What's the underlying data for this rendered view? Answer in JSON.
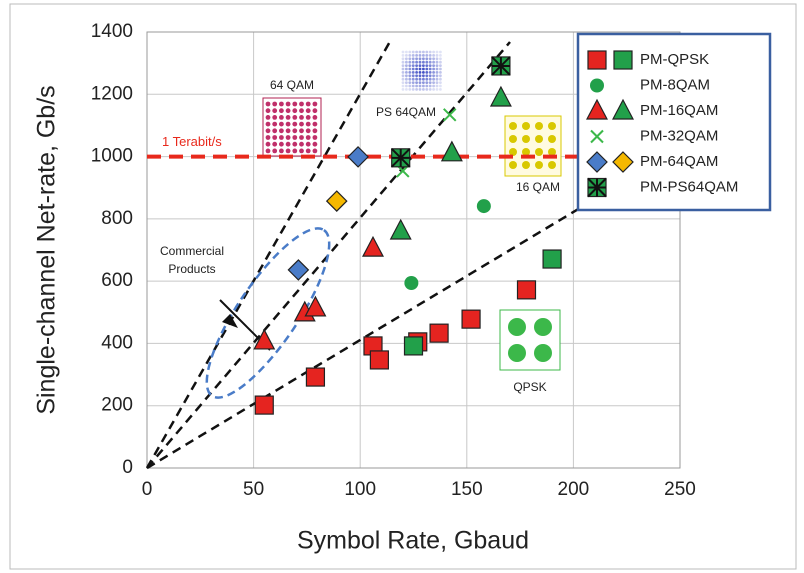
{
  "chart_data": {
    "type": "scatter",
    "xlabel": "Symbol Rate, Gbaud",
    "ylabel": "Single-channel Net-rate, Gb/s",
    "xlim": [
      0,
      250
    ],
    "ylim": [
      0,
      1400
    ],
    "xticks": [
      0,
      50,
      100,
      150,
      200,
      250
    ],
    "yticks": [
      0,
      200,
      400,
      600,
      800,
      1000,
      1200,
      1400
    ],
    "grid": true,
    "legend": "upper right",
    "reference_line": {
      "value": 1000,
      "label": "1 Terabit/s",
      "color": "#e8291c"
    },
    "series": [
      {
        "name": "PM-QPSK",
        "marker": "square",
        "groups": [
          {
            "color": "#e52420",
            "x": [
              55,
              79,
              106,
              109,
              127,
              137,
              152,
              178
            ],
            "y": [
              202,
              292,
              392,
              347,
              405,
              433,
              478,
              572
            ]
          },
          {
            "color": "#22a04a",
            "x": [
              125,
              190
            ],
            "y": [
              392,
              671
            ]
          }
        ]
      },
      {
        "name": "PM-8QAM",
        "marker": "circle",
        "groups": [
          {
            "color": "#22a04a",
            "x": [
              124,
              158
            ],
            "y": [
              594,
              841
            ]
          }
        ]
      },
      {
        "name": "PM-16QAM",
        "marker": "triangle",
        "groups": [
          {
            "color": "#e52420",
            "x": [
              55,
              74,
              79,
              106
            ],
            "y": [
              408,
              498,
              514,
              706
            ]
          },
          {
            "color": "#22a04a",
            "x": [
              119,
              143,
              166
            ],
            "y": [
              761,
              1012,
              1188
            ]
          }
        ]
      },
      {
        "name": "PM-32QAM",
        "marker": "cross",
        "groups": [
          {
            "color": "#3cb84a",
            "x": [
              120,
              142
            ],
            "y": [
              954,
              1134
            ]
          }
        ]
      },
      {
        "name": "PM-64QAM",
        "marker": "diamond",
        "groups": [
          {
            "color": "#4a7cc8",
            "x": [
              71,
              99
            ],
            "y": [
              636,
              999
            ]
          },
          {
            "color": "#f5b800",
            "x": [
              89
            ],
            "y": [
              857
            ]
          }
        ]
      },
      {
        "name": "PM-PS64QAM",
        "marker": "starsquare",
        "groups": [
          {
            "color": "#22a04a",
            "x": [
              119,
              166
            ],
            "y": [
              996,
              1291
            ]
          }
        ]
      }
    ],
    "annotations": [
      {
        "text": "64 QAM"
      },
      {
        "text": "PS 64QAM"
      },
      {
        "text": "16 QAM"
      },
      {
        "text": "QPSK"
      },
      {
        "lines": [
          "Commercial",
          "Products"
        ]
      }
    ]
  }
}
